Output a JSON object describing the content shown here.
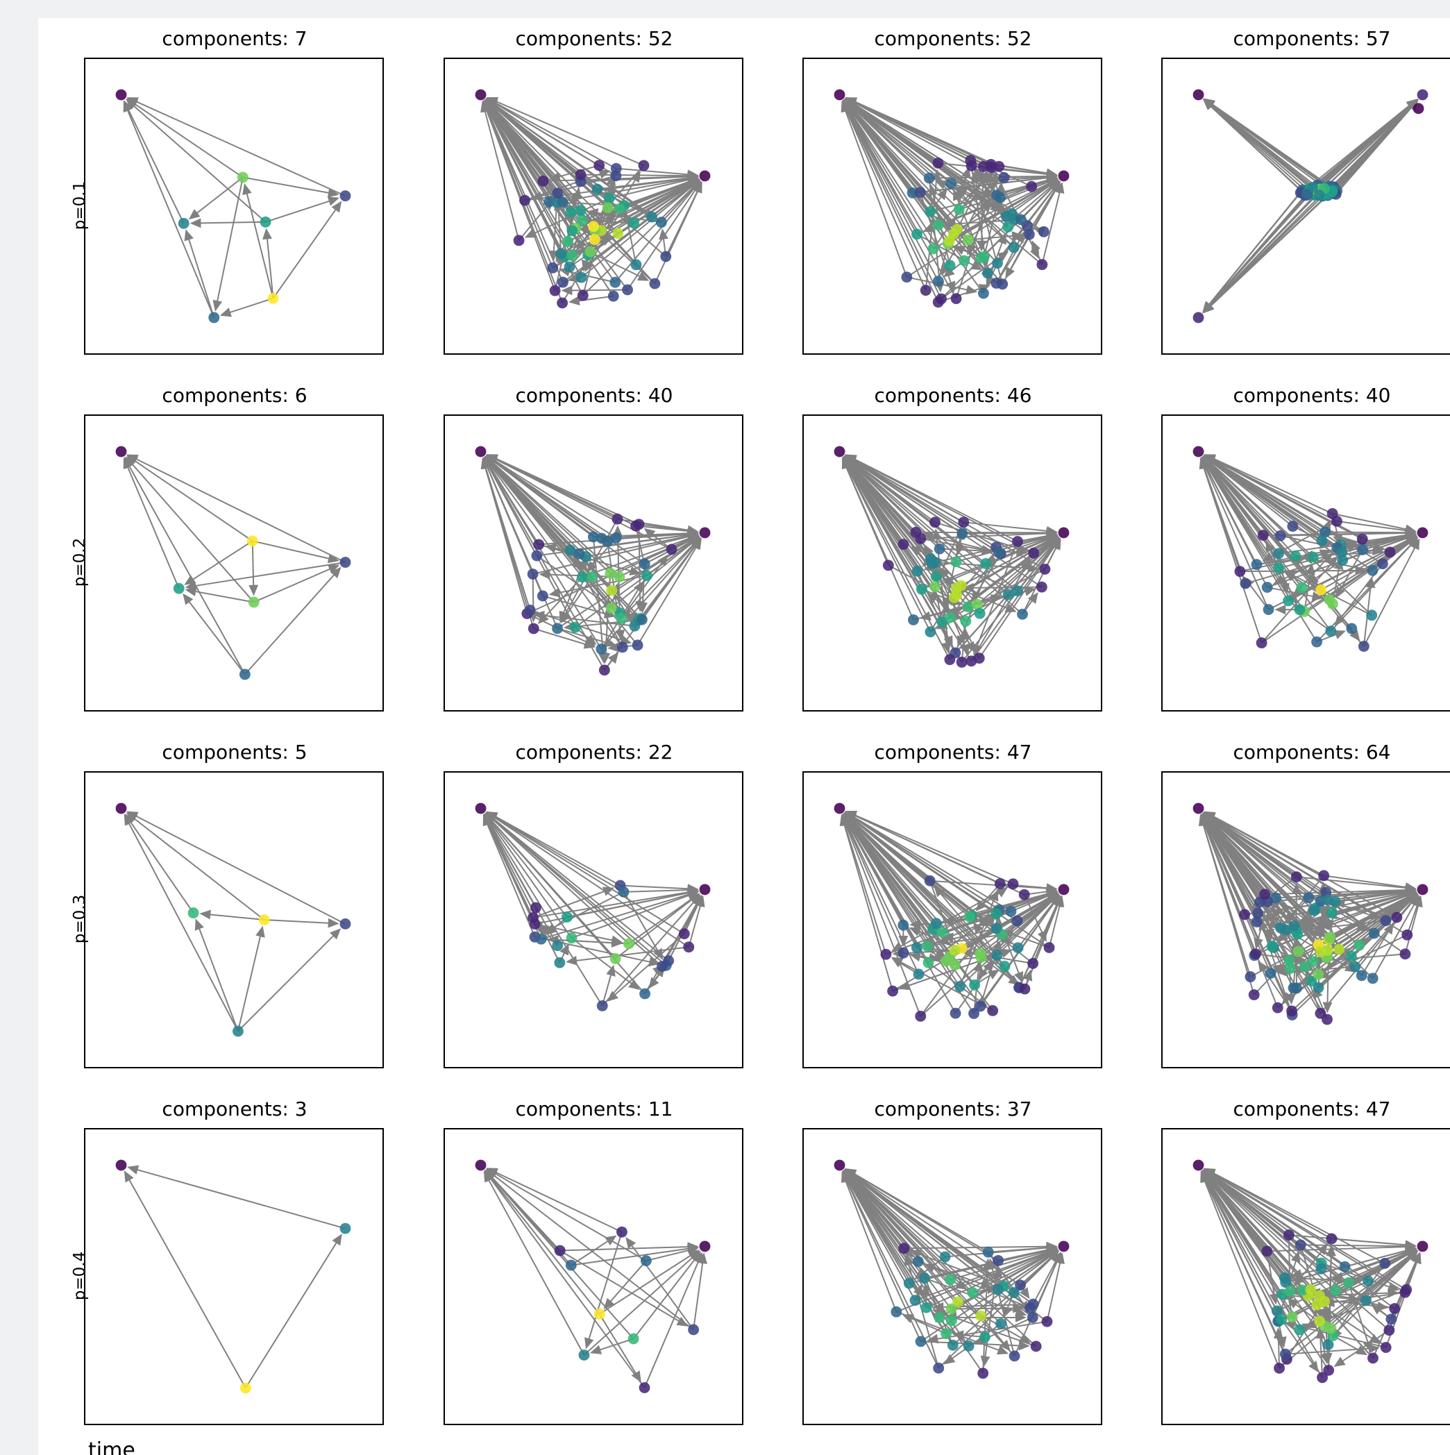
{
  "figure": {
    "x_axis_label": "time",
    "row_labels": [
      "p=0.1",
      "p=0.2",
      "p=0.3",
      "p=0.4"
    ],
    "edge_color": "#808080",
    "colormap": "viridis"
  },
  "chart_data": [
    {
      "type": "network",
      "row": 0,
      "col": 0,
      "title": "components: 7",
      "nodes": 7,
      "layout": "small"
    },
    {
      "type": "network",
      "row": 0,
      "col": 1,
      "title": "components: 52",
      "nodes": 52,
      "layout": "cluster"
    },
    {
      "type": "network",
      "row": 0,
      "col": 2,
      "title": "components: 52",
      "nodes": 52,
      "layout": "cluster"
    },
    {
      "type": "network",
      "row": 0,
      "col": 3,
      "title": "components: 57",
      "nodes": 57,
      "layout": "collapsed"
    },
    {
      "type": "network",
      "row": 1,
      "col": 0,
      "title": "components: 6",
      "nodes": 6,
      "layout": "small"
    },
    {
      "type": "network",
      "row": 1,
      "col": 1,
      "title": "components: 40",
      "nodes": 40,
      "layout": "cluster"
    },
    {
      "type": "network",
      "row": 1,
      "col": 2,
      "title": "components: 46",
      "nodes": 46,
      "layout": "cluster"
    },
    {
      "type": "network",
      "row": 1,
      "col": 3,
      "title": "components: 40",
      "nodes": 40,
      "layout": "cluster"
    },
    {
      "type": "network",
      "row": 2,
      "col": 0,
      "title": "components: 5",
      "nodes": 5,
      "layout": "small"
    },
    {
      "type": "network",
      "row": 2,
      "col": 1,
      "title": "components: 22",
      "nodes": 22,
      "layout": "cluster"
    },
    {
      "type": "network",
      "row": 2,
      "col": 2,
      "title": "components: 47",
      "nodes": 47,
      "layout": "cluster"
    },
    {
      "type": "network",
      "row": 2,
      "col": 3,
      "title": "components: 64",
      "nodes": 64,
      "layout": "cluster"
    },
    {
      "type": "network",
      "row": 3,
      "col": 0,
      "title": "components: 3",
      "nodes": 3,
      "layout": "small"
    },
    {
      "type": "network",
      "row": 3,
      "col": 1,
      "title": "components: 11",
      "nodes": 11,
      "layout": "sparse"
    },
    {
      "type": "network",
      "row": 3,
      "col": 2,
      "title": "components: 37",
      "nodes": 37,
      "layout": "cluster"
    },
    {
      "type": "network",
      "row": 3,
      "col": 3,
      "title": "components: 47",
      "nodes": 47,
      "layout": "cluster"
    }
  ]
}
